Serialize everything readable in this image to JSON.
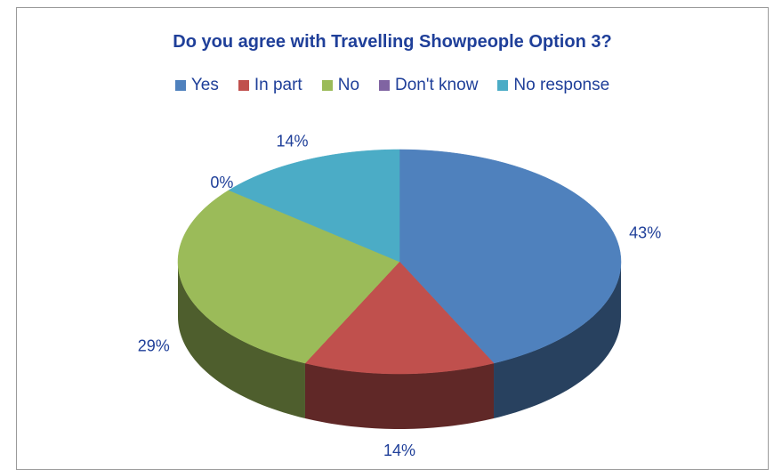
{
  "chart_data": {
    "type": "pie",
    "style": "3d",
    "title": "Do you agree with Travelling Showpeople Option 3?",
    "legend_position": "top",
    "categories": [
      "Yes",
      "In part",
      "No",
      "Don't know",
      "No response"
    ],
    "values": [
      43,
      14,
      29,
      0,
      14
    ],
    "labels": [
      "43%",
      "14%",
      "29%",
      "0%",
      "14%"
    ],
    "colors": [
      "#4f81bd",
      "#c0504d",
      "#9bbb59",
      "#8064a2",
      "#4bacc6"
    ]
  }
}
